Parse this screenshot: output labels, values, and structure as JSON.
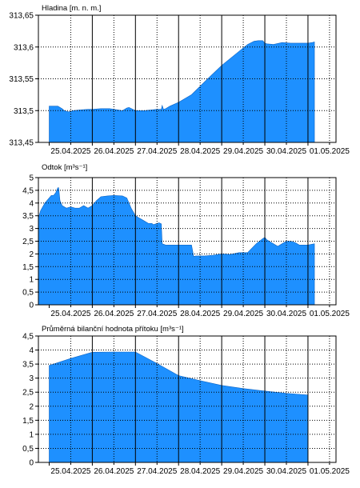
{
  "chart_data": [
    {
      "type": "area",
      "title": "Hladina [m. n. m.]",
      "x_unit": "day index (0 = 25.04.2025 00:00)",
      "xlim": [
        -0.25,
        6.65
      ],
      "ylim": [
        313.45,
        313.65
      ],
      "yticks": [
        313.45,
        313.5,
        313.55,
        313.6,
        313.65
      ],
      "ytick_labels": [
        "313,45",
        "313,5",
        "313,55",
        "313,6",
        "313,65"
      ],
      "categories": [
        "25.04.2025",
        "26.04.2025",
        "27.04.2025",
        "28.04.2025",
        "29.04.2025",
        "30.04.2025",
        "01.05.2025"
      ],
      "grid": true,
      "fill_color": "#1e90ff",
      "series": [
        {
          "x": [
            0,
            0.1,
            0.2,
            0.3,
            0.35,
            0.45,
            0.55,
            0.7,
            0.9,
            1.0,
            1.2,
            1.4,
            1.6,
            1.7,
            1.8,
            1.85,
            2.0,
            2.2,
            2.5,
            2.6,
            2.62,
            2.65,
            2.7,
            2.8,
            3.0,
            3.3,
            3.6,
            3.8,
            4.0,
            4.2,
            4.4,
            4.6,
            4.75,
            4.85,
            4.95,
            5.0,
            5.05,
            5.2,
            5.4,
            5.6,
            5.8,
            6.0,
            6.1,
            6.15
          ],
          "y": [
            313.507,
            313.507,
            313.507,
            313.503,
            313.5,
            313.498,
            313.5,
            313.501,
            313.502,
            313.502,
            313.503,
            313.503,
            313.501,
            313.5,
            313.504,
            313.505,
            313.5,
            313.5,
            313.502,
            313.502,
            313.508,
            313.502,
            313.503,
            313.507,
            313.513,
            313.525,
            313.545,
            313.558,
            313.571,
            313.582,
            313.593,
            313.604,
            313.609,
            313.61,
            313.61,
            313.606,
            313.605,
            313.604,
            313.607,
            313.606,
            313.606,
            313.606,
            313.607,
            313.608
          ]
        }
      ]
    },
    {
      "type": "area",
      "title": "Odtok [m³s⁻¹]",
      "x_unit": "day index (0 = 25.04.2025 00:00)",
      "xlim": [
        -0.25,
        6.65
      ],
      "ylim": [
        0,
        5
      ],
      "yticks": [
        0,
        0.5,
        1,
        1.5,
        2,
        2.5,
        3,
        3.5,
        4,
        4.5,
        5
      ],
      "ytick_labels": [
        "0",
        "0,5",
        "1",
        "1,5",
        "2",
        "2,5",
        "3",
        "3,5",
        "4",
        "4,5",
        "5"
      ],
      "categories": [
        "25.04.2025",
        "26.04.2025",
        "27.04.2025",
        "28.04.2025",
        "29.04.2025",
        "30.04.2025",
        "01.05.2025"
      ],
      "grid": true,
      "fill_color": "#1e90ff",
      "series": [
        {
          "x": [
            -0.25,
            -0.2,
            -0.1,
            0.0,
            0.05,
            0.1,
            0.15,
            0.2,
            0.22,
            0.25,
            0.3,
            0.4,
            0.5,
            0.6,
            0.7,
            0.8,
            0.9,
            1.0,
            1.1,
            1.2,
            1.35,
            1.5,
            1.7,
            1.8,
            1.9,
            2.0,
            2.1,
            2.2,
            2.3,
            2.38,
            2.42,
            2.5,
            2.55,
            2.6,
            2.62,
            2.65,
            2.7,
            2.8,
            3.0,
            3.3,
            3.35,
            3.4,
            3.6,
            3.8,
            4.0,
            4.2,
            4.4,
            4.6,
            4.8,
            4.95,
            5.0,
            5.05,
            5.15,
            5.3,
            5.4,
            5.5,
            5.6,
            5.7,
            5.8,
            6.0,
            6.15
          ],
          "y": [
            3.4,
            3.7,
            4.0,
            4.2,
            4.3,
            4.3,
            4.4,
            4.6,
            4.6,
            4.1,
            3.9,
            3.8,
            3.85,
            3.8,
            3.8,
            3.9,
            3.8,
            3.9,
            4.1,
            4.25,
            4.28,
            4.3,
            4.28,
            4.2,
            3.8,
            3.5,
            3.4,
            3.3,
            3.2,
            3.2,
            3.15,
            3.2,
            3.22,
            3.18,
            2.4,
            2.38,
            2.35,
            2.35,
            2.35,
            2.35,
            1.9,
            1.92,
            1.92,
            1.95,
            2.0,
            1.98,
            2.05,
            2.05,
            2.4,
            2.6,
            2.65,
            2.55,
            2.45,
            2.3,
            2.4,
            2.5,
            2.5,
            2.45,
            2.35,
            2.35,
            2.4
          ]
        }
      ]
    },
    {
      "type": "area",
      "title": "Průměrná bilanční hodnota přítoku   [m³s⁻¹]",
      "x_unit": "day index (0 = 25.04.2025 00:00)",
      "xlim": [
        -0.25,
        6.65
      ],
      "ylim": [
        0,
        4.5
      ],
      "yticks": [
        0,
        0.5,
        1,
        1.5,
        2,
        2.5,
        3,
        3.5,
        4,
        4.5
      ],
      "ytick_labels": [
        "0",
        "0,5",
        "1",
        "1,5",
        "2",
        "2,5",
        "3",
        "3,5",
        "4",
        "4,5"
      ],
      "categories": [
        "25.04.2025",
        "26.04.2025",
        "27.04.2025",
        "28.04.2025",
        "29.04.2025",
        "30.04.2025",
        "01.05.2025"
      ],
      "grid": true,
      "fill_color": "#1e90ff",
      "series": [
        {
          "x": [
            0.0,
            0.5,
            1.0,
            1.5,
            2.0,
            2.5,
            3.0,
            3.5,
            4.0,
            4.5,
            5.0,
            5.5,
            6.0
          ],
          "y": [
            3.45,
            3.7,
            3.92,
            3.93,
            3.93,
            3.52,
            3.09,
            2.91,
            2.74,
            2.63,
            2.54,
            2.46,
            2.4
          ]
        }
      ]
    }
  ]
}
